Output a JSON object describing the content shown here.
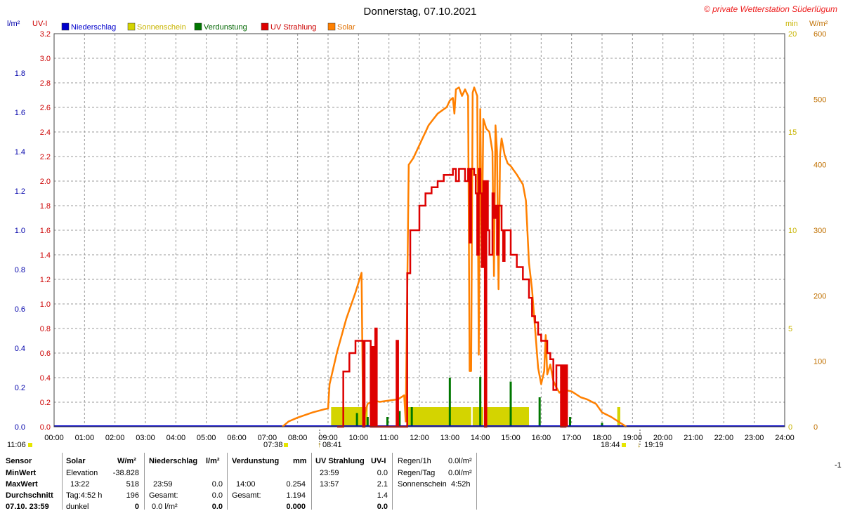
{
  "colors": {
    "precipitation": "#0000cc",
    "sunshine": "#d4d400",
    "sunshine_label": "#c8b400",
    "evaporation": "#007700",
    "uv": "#dd0000",
    "solar": "#ff8000",
    "left_axis": "#0000aa",
    "uv_axis": "#cc0000",
    "min_axis": "#c8b400",
    "wm2_axis": "#c07000",
    "grid": "#999999"
  },
  "header": {
    "title": "Donnerstag, 07.10.2021",
    "copyright": "© private Wetterstation Süderlügum",
    "unit_lm2": "l/m²",
    "unit_uvi": "UV-I",
    "unit_min": "min",
    "unit_wm2": "W/m²"
  },
  "legend": [
    {
      "label": "Niederschlag",
      "color": "#0000cc",
      "text_color": "#0000cc",
      "icon": "blue-square-icon"
    },
    {
      "label": "Sonnenschein",
      "color": "#d4d400",
      "text_color": "#c8b400",
      "icon": "yellow-square-icon"
    },
    {
      "label": "Verdunstung",
      "color": "#007700",
      "text_color": "#006600",
      "icon": "green-square-icon"
    },
    {
      "label": "UV Strahlung",
      "color": "#dd0000",
      "text_color": "#cc0000",
      "icon": "red-square-icon"
    },
    {
      "label": "Solar",
      "color": "#ff8000",
      "text_color": "#e07000",
      "icon": "orange-square-icon"
    }
  ],
  "markers": {
    "moonrise": "11:06",
    "sunrise": "07:38",
    "sun_noon": "08:41",
    "sunset": "18:44",
    "moonset": "19:19"
  },
  "chart_data": {
    "type": "line",
    "xlabel": "",
    "xlim": [
      0,
      24
    ],
    "x_ticks": [
      "00:00",
      "01:00",
      "02:00",
      "03:00",
      "04:00",
      "05:00",
      "06:00",
      "07:00",
      "08:00",
      "09:00",
      "10:00",
      "11:00",
      "12:00",
      "13:00",
      "14:00",
      "15:00",
      "16:00",
      "17:00",
      "18:00",
      "19:00",
      "20:00",
      "21:00",
      "22:00",
      "23:00",
      "24:00"
    ],
    "axes": {
      "precip_lm2": {
        "range": [
          0,
          2.0
        ],
        "ticks": [
          "0.0",
          "0.2",
          "0.4",
          "0.6",
          "0.8",
          "1.0",
          "1.2",
          "1.4",
          "1.6",
          "1.8"
        ]
      },
      "uv_index": {
        "range": [
          0,
          3.2
        ],
        "ticks": [
          "0.0",
          "0.2",
          "0.4",
          "0.6",
          "0.8",
          "1.0",
          "1.2",
          "1.4",
          "1.6",
          "1.8",
          "2.0",
          "2.2",
          "2.4",
          "2.6",
          "2.8",
          "3.0",
          "3.2"
        ]
      },
      "sunshine_min": {
        "range": [
          0,
          20
        ],
        "ticks": [
          "0",
          "5",
          "10",
          "15",
          "20"
        ]
      },
      "solar_wm2": {
        "range": [
          0,
          600
        ],
        "ticks": [
          "0",
          "100",
          "200",
          "300",
          "400",
          "500",
          "600"
        ]
      }
    },
    "grid": true,
    "series": [
      {
        "name": "Solar",
        "axis": "solar_wm2",
        "points": [
          [
            7.5,
            0
          ],
          [
            7.7,
            8
          ],
          [
            8.0,
            14
          ],
          [
            8.5,
            22
          ],
          [
            8.9,
            27
          ],
          [
            9.0,
            28
          ],
          [
            9.05,
            65
          ],
          [
            9.3,
            115
          ],
          [
            9.6,
            165
          ],
          [
            9.9,
            205
          ],
          [
            10.1,
            235
          ],
          [
            10.15,
            10
          ],
          [
            10.3,
            35
          ],
          [
            10.5,
            40
          ],
          [
            10.7,
            38
          ],
          [
            11.0,
            40
          ],
          [
            11.3,
            42
          ],
          [
            11.5,
            48
          ],
          [
            11.55,
            8
          ],
          [
            11.65,
            400
          ],
          [
            11.8,
            410
          ],
          [
            12.0,
            430
          ],
          [
            12.3,
            460
          ],
          [
            12.6,
            478
          ],
          [
            12.9,
            488
          ],
          [
            13.0,
            498
          ],
          [
            13.1,
            502
          ],
          [
            13.15,
            478
          ],
          [
            13.2,
            515
          ],
          [
            13.3,
            518
          ],
          [
            13.4,
            505
          ],
          [
            13.5,
            515
          ],
          [
            13.6,
            505
          ],
          [
            13.65,
            85
          ],
          [
            13.7,
            85
          ],
          [
            13.75,
            510
          ],
          [
            13.8,
            518
          ],
          [
            13.9,
            505
          ],
          [
            13.95,
            110
          ],
          [
            14.0,
            485
          ],
          [
            14.05,
            260
          ],
          [
            14.1,
            470
          ],
          [
            14.2,
            455
          ],
          [
            14.3,
            450
          ],
          [
            14.4,
            420
          ],
          [
            14.45,
            230
          ],
          [
            14.5,
            460
          ],
          [
            14.55,
            420
          ],
          [
            14.6,
            210
          ],
          [
            14.65,
            415
          ],
          [
            14.7,
            440
          ],
          [
            14.8,
            415
          ],
          [
            14.9,
            402
          ],
          [
            15.0,
            398
          ],
          [
            15.2,
            385
          ],
          [
            15.4,
            370
          ],
          [
            15.5,
            345
          ],
          [
            15.6,
            250
          ],
          [
            15.7,
            210
          ],
          [
            15.8,
            150
          ],
          [
            15.9,
            90
          ],
          [
            16.0,
            65
          ],
          [
            16.05,
            75
          ],
          [
            16.1,
            85
          ],
          [
            16.15,
            140
          ],
          [
            16.2,
            80
          ],
          [
            16.3,
            95
          ],
          [
            16.4,
            70
          ],
          [
            16.5,
            60
          ],
          [
            16.6,
            52
          ],
          [
            16.7,
            57
          ],
          [
            17.0,
            54
          ],
          [
            17.3,
            45
          ],
          [
            17.5,
            42
          ],
          [
            17.8,
            35
          ],
          [
            18.0,
            22
          ],
          [
            18.3,
            15
          ],
          [
            18.6,
            6
          ],
          [
            18.8,
            0
          ]
        ]
      },
      {
        "name": "UV Strahlung",
        "axis": "uv_index",
        "points": [
          [
            9.3,
            0
          ],
          [
            9.5,
            0.45
          ],
          [
            9.7,
            0.6
          ],
          [
            9.9,
            0.7
          ],
          [
            10.1,
            0.7
          ],
          [
            10.15,
            0
          ],
          [
            10.2,
            0.7
          ],
          [
            10.3,
            0.7
          ],
          [
            10.4,
            0
          ],
          [
            10.45,
            0.65
          ],
          [
            10.5,
            0
          ],
          [
            10.55,
            0.8
          ],
          [
            10.6,
            0
          ],
          [
            11.2,
            0
          ],
          [
            11.25,
            0.7
          ],
          [
            11.3,
            0
          ],
          [
            11.55,
            0
          ],
          [
            11.6,
            1.25
          ],
          [
            11.7,
            1.6
          ],
          [
            11.8,
            1.6
          ],
          [
            11.9,
            1.6
          ],
          [
            12.0,
            1.8
          ],
          [
            12.2,
            1.9
          ],
          [
            12.4,
            1.95
          ],
          [
            12.6,
            2.0
          ],
          [
            12.8,
            2.05
          ],
          [
            13.0,
            2.05
          ],
          [
            13.1,
            2.1
          ],
          [
            13.2,
            2.0
          ],
          [
            13.3,
            2.1
          ],
          [
            13.4,
            2.1
          ],
          [
            13.5,
            2.0
          ],
          [
            13.6,
            2.1
          ],
          [
            13.65,
            1.5
          ],
          [
            13.7,
            2.1
          ],
          [
            13.8,
            2.05
          ],
          [
            13.85,
            1.9
          ],
          [
            13.9,
            1.4
          ],
          [
            13.95,
            2.1
          ],
          [
            14.0,
            1.9
          ],
          [
            14.05,
            1.3
          ],
          [
            14.1,
            2.0
          ],
          [
            14.15,
            0
          ],
          [
            14.2,
            2.0
          ],
          [
            14.25,
            1.6
          ],
          [
            14.3,
            1.4
          ],
          [
            14.4,
            1.9
          ],
          [
            14.45,
            1.7
          ],
          [
            14.5,
            1.8
          ],
          [
            14.55,
            1.4
          ],
          [
            14.6,
            1.8
          ],
          [
            14.7,
            1.6
          ],
          [
            14.75,
            1.35
          ],
          [
            14.8,
            1.6
          ],
          [
            15.0,
            1.4
          ],
          [
            15.2,
            1.3
          ],
          [
            15.4,
            1.2
          ],
          [
            15.6,
            1.05
          ],
          [
            15.7,
            0.9
          ],
          [
            15.8,
            0.85
          ],
          [
            15.9,
            0.75
          ],
          [
            16.0,
            0.7
          ],
          [
            16.2,
            0.6
          ],
          [
            16.3,
            0.55
          ],
          [
            16.4,
            0.3
          ],
          [
            16.5,
            0.5
          ],
          [
            16.6,
            0.5
          ],
          [
            16.65,
            0
          ],
          [
            16.7,
            0.5
          ],
          [
            16.75,
            0
          ],
          [
            16.8,
            0.5
          ],
          [
            16.85,
            0
          ]
        ]
      },
      {
        "name": "Sonnenschein",
        "axis": "sunshine_min",
        "blocks": [
          [
            9.1,
            10.3,
            1.0
          ],
          [
            11.6,
            13.7,
            1.0
          ],
          [
            13.75,
            14.1,
            1.0
          ],
          [
            14.2,
            15.6,
            1.0
          ],
          [
            18.5,
            18.6,
            1.0
          ]
        ]
      },
      {
        "name": "Verdunstung",
        "axis": "precip_lm2",
        "spikes": [
          [
            9.95,
            0.07
          ],
          [
            10.3,
            0.05
          ],
          [
            10.95,
            0.05
          ],
          [
            11.35,
            0.08
          ],
          [
            11.75,
            0.1
          ],
          [
            13.0,
            0.25
          ],
          [
            14.0,
            0.254
          ],
          [
            15.0,
            0.23
          ],
          [
            15.95,
            0.15
          ],
          [
            16.95,
            0.05
          ],
          [
            18.0,
            0.02
          ]
        ]
      },
      {
        "name": "Niederschlag",
        "axis": "precip_lm2",
        "points": [
          [
            0,
            0
          ],
          [
            24,
            0
          ]
        ]
      }
    ]
  },
  "table": {
    "col1": {
      "header": "Sensor",
      "rows": [
        "MinWert",
        "MaxWert",
        "Durchschnitt",
        "07.10. 23:59"
      ]
    },
    "solar": {
      "header": "Solar",
      "unit": "W/m²",
      "rows": [
        [
          "Elevation",
          "-38.828"
        ],
        [
          "13:22",
          "518"
        ],
        [
          "Tag:4:52 h",
          "196"
        ],
        [
          "dunkel",
          "0"
        ]
      ]
    },
    "precip": {
      "header": "Niederschlag",
      "unit": "l/m²",
      "rows": [
        [
          "",
          ""
        ],
        [
          "23:59",
          "0.0"
        ],
        [
          "Gesamt:",
          "0.0"
        ],
        [
          "0.0 l/m²",
          "0.0"
        ]
      ]
    },
    "evap": {
      "header": "Verdunstung",
      "unit": "mm",
      "rows": [
        [
          "",
          ""
        ],
        [
          "14:00",
          "0.254"
        ],
        [
          "Gesamt:",
          "1.194"
        ],
        [
          "",
          "0.000"
        ]
      ]
    },
    "uv": {
      "header": "UV Strahlung",
      "unit": "UV-I",
      "rows": [
        [
          "23:59",
          "0.0"
        ],
        [
          "13:57",
          "2.1"
        ],
        [
          "",
          "1.4"
        ],
        [
          "",
          "0.0"
        ]
      ]
    },
    "rain": {
      "rows": [
        [
          "Regen/1h",
          "0.0l/m²"
        ],
        [
          "Regen/Tag",
          "0.0l/m²"
        ],
        [
          "Sonnenschein",
          "4:52h"
        ]
      ]
    },
    "edge_mark": "-1"
  }
}
